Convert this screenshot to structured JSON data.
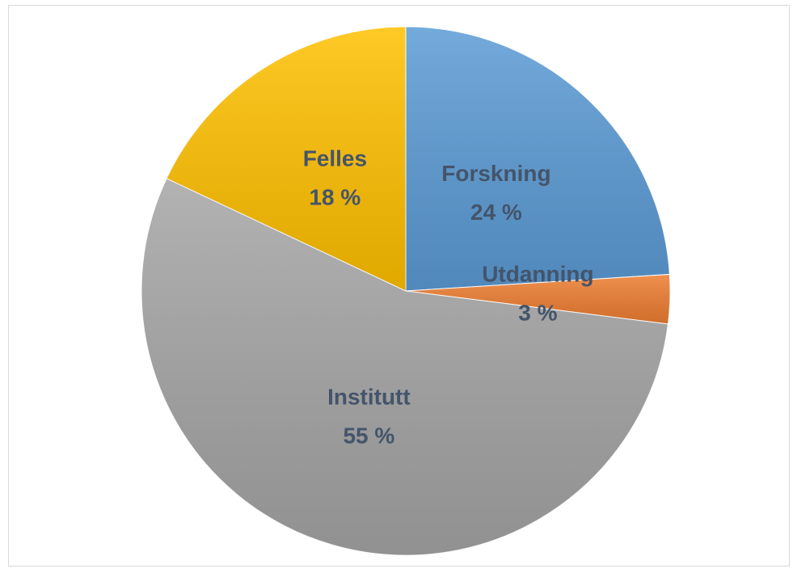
{
  "chart_data": {
    "type": "pie",
    "categories": [
      "Forskning",
      "Utdanning",
      "Institutt",
      "Felles"
    ],
    "values": [
      24,
      3,
      55,
      18
    ],
    "value_labels": [
      "24 %",
      "3 %",
      "55 %",
      "18 %"
    ],
    "colors": [
      "#5b9bd5",
      "#ed7d31",
      "#a5a5a5",
      "#ffc000"
    ]
  }
}
